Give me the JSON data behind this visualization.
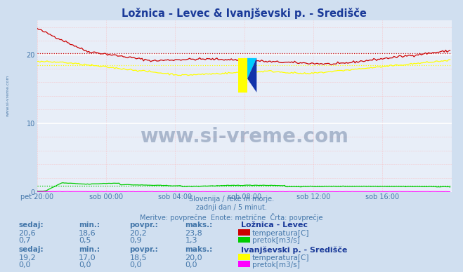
{
  "title": "Ložnica - Levec & Ivanjševski p. - Središče",
  "title_color": "#1a3a99",
  "bg_color": "#d0dff0",
  "plot_bg_color": "#e8eef8",
  "xlabel_color": "#4477aa",
  "ylabel_values": [
    0,
    10,
    20
  ],
  "ylim": [
    0,
    25
  ],
  "n_points": 288,
  "x_ticks": [
    0,
    48,
    96,
    144,
    192,
    240,
    288
  ],
  "x_tick_labels": [
    "pet 20:00",
    "sob 00:00",
    "sob 04:00",
    "sob 08:00",
    "sob 12:00",
    "sob 16:00",
    ""
  ],
  "loznica_temp_color": "#cc0000",
  "loznica_pretok_color": "#00cc00",
  "ivanj_temp_color": "#ffff00",
  "ivanj_pretok_color": "#ff00ff",
  "loznica_temp_avg": 20.2,
  "loznica_pretok_avg": 0.9,
  "ivanj_temp_avg": 18.5,
  "subtitle_lines": [
    "Slovenija / reke in morje.",
    "zadnji dan / 5 minut.",
    "Meritve: povprečne  Enote: metrične  Črta: povprečje"
  ],
  "table": {
    "headers": [
      "sedaj:",
      "min.:",
      "povpr.:",
      "maks.:"
    ],
    "loznica_label": "Ložnica - Levec",
    "loznica_temp_row": [
      "20,6",
      "18,6",
      "20,2",
      "23,8"
    ],
    "loznica_pretok_row": [
      "0,7",
      "0,5",
      "0,9",
      "1,3"
    ],
    "ivanjsevski_label": "Ivanjševski p. - Središče",
    "ivanjsevski_temp_row": [
      "19,2",
      "17,0",
      "18,5",
      "20,0"
    ],
    "ivanjsevski_pretok_row": [
      "0,0",
      "0,0",
      "0,0",
      "0,0"
    ]
  }
}
